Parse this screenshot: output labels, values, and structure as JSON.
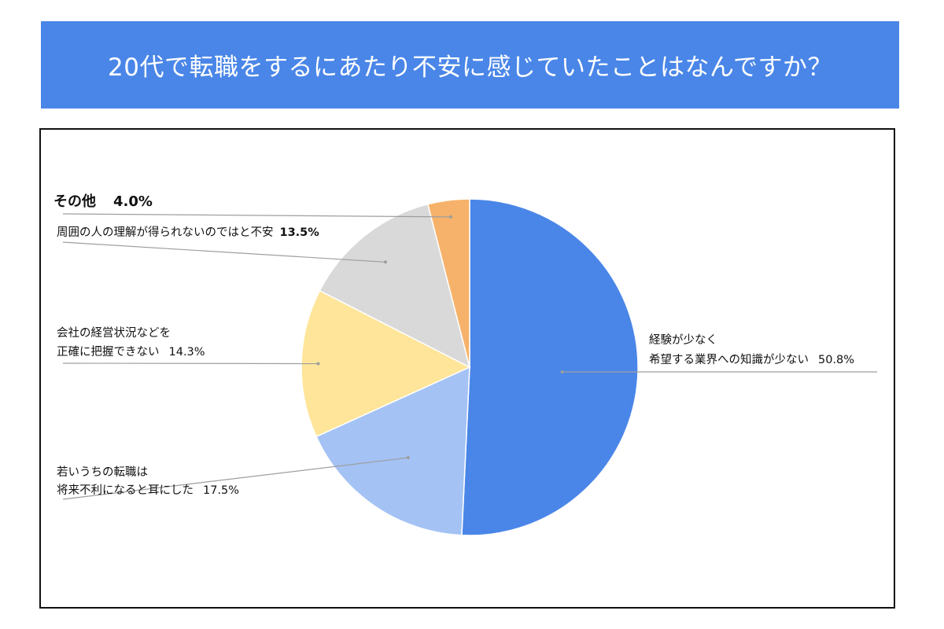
{
  "header": {
    "title": "20代で転職をするにあたり不安に感じていたことはなんですか？"
  },
  "colors": {
    "banner": "#4a86e8",
    "leader_line": "#9e9e9e"
  },
  "chart_data": {
    "type": "pie",
    "title": "20代で転職をするにあたり不安に感じていたことはなんですか？",
    "slices": [
      {
        "label_lines": [
          "経験が少なく",
          "希望する業界への知識が少ない"
        ],
        "value": 50.8,
        "value_label": "50.8%",
        "color": "#4a86e8"
      },
      {
        "label_lines": [
          "若いうちの転職は",
          "将来不利になると耳にした"
        ],
        "value": 17.5,
        "value_label": "17.5%",
        "color": "#a4c2f4"
      },
      {
        "label_lines": [
          "会社の経営状況などを",
          "正確に把握できない"
        ],
        "value": 14.3,
        "value_label": "14.3%",
        "color": "#ffe599"
      },
      {
        "label_lines": [
          "周囲の人の理解が得られないのではと不安"
        ],
        "value": 13.5,
        "value_label": "13.5%",
        "color": "#d9d9d9"
      },
      {
        "label_lines": [
          "その他"
        ],
        "value": 4.0,
        "value_label": "4.0%",
        "color": "#f6b26b"
      }
    ],
    "start_angle_deg": 0,
    "direction": "clockwise"
  }
}
